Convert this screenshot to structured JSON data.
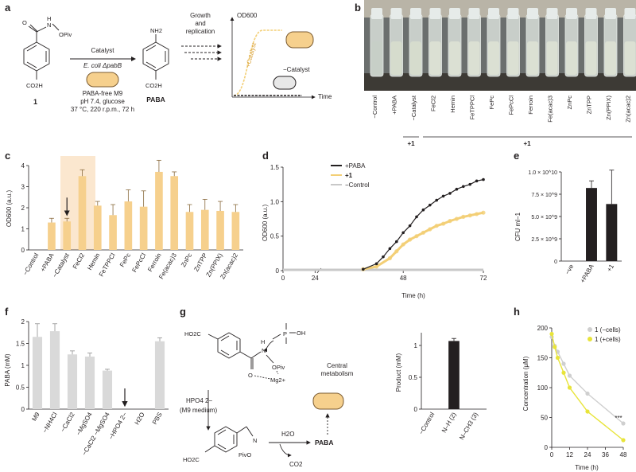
{
  "panel_labels": {
    "a": "a",
    "b": "b",
    "c": "c",
    "d": "d",
    "e": "e",
    "f": "f",
    "g": "g",
    "h": "h"
  },
  "panel_a": {
    "reactant_substituent": "OPiv",
    "reactant_nh": "N",
    "reactant_h": "H",
    "reactant_o": "O",
    "reactant_acid": "CO2H",
    "compound_number": "1",
    "arrow_label": "Catalyst",
    "organism": "E. coli ΔpabB",
    "conditions": [
      "PABA-free M9",
      "pH 7.4, glucose",
      "37 °C, 220 r.p.m., 72 h"
    ],
    "product_amine": "NH2",
    "product_acid": "CO2H",
    "product_name": "PABA",
    "growth_label": [
      "Growth",
      "and",
      "replication"
    ],
    "y_axis": "OD600",
    "x_axis": "Time",
    "plus_catalyst": "+Catalyst",
    "minus_catalyst": "−Catalyst"
  },
  "panel_b": {
    "tube_labels": [
      "−Control",
      "+PABA",
      "−Catalyst",
      "FeCl2",
      "Hemin",
      "FeTPPCl",
      "FePc",
      "FePcCl",
      "Ferroin",
      "Fe(acac)3",
      "ZnPc",
      "ZnTPP",
      "Zn(PPIX)",
      "Zn(acac)2"
    ],
    "group_label_single": "+1",
    "group_label_range": "+1"
  },
  "panel_c": {
    "chart_data": {
      "type": "bar",
      "ylabel": "OD600 (a.u.)",
      "ylim": [
        0,
        4
      ],
      "yticks": [
        0,
        1,
        2,
        3,
        4
      ],
      "categories": [
        "−Control",
        "+PABA",
        "−Catalyst",
        "FeCl2",
        "Hemin",
        "FeTPPCl",
        "FePc",
        "FePcCl",
        "Ferroin",
        "Fe(acac)3",
        "ZnPc",
        "ZnTPP",
        "Zn(PPIX)",
        "Zn(acac)2"
      ],
      "values": [
        0.0,
        1.3,
        1.35,
        3.5,
        2.1,
        1.65,
        2.3,
        2.05,
        3.7,
        3.5,
        1.8,
        1.9,
        1.85,
        1.8
      ],
      "errors": [
        0.0,
        0.2,
        0.15,
        0.3,
        0.2,
        0.5,
        0.55,
        0.75,
        0.55,
        0.2,
        0.35,
        0.5,
        0.45,
        0.35
      ],
      "highlight_categories": [
        "+PABA",
        "−Catalyst"
      ],
      "arrow_at": "−Catalyst",
      "bar_color": "#f6d08d"
    }
  },
  "panel_d": {
    "chart_data": {
      "type": "scatter",
      "xlabel": "Time (h)",
      "ylabel": "OD600 (a.u.)",
      "xlim": [
        0,
        72
      ],
      "ylim": [
        0,
        1.5
      ],
      "xticks": [
        0,
        24,
        48,
        72
      ],
      "yticks": [
        0,
        0.5,
        1.0,
        1.5
      ],
      "axis_break_after": 24,
      "legend_position": "top-left",
      "series": [
        {
          "name": "+PABA",
          "color": "#231f20",
          "x": [
            36,
            40,
            42,
            44,
            46,
            48,
            50,
            52,
            54,
            56,
            58,
            60,
            62,
            64,
            66,
            68,
            70,
            72
          ],
          "y": [
            0.02,
            0.1,
            0.2,
            0.32,
            0.42,
            0.55,
            0.65,
            0.78,
            0.88,
            0.95,
            1.02,
            1.08,
            1.12,
            1.18,
            1.22,
            1.25,
            1.3,
            1.32
          ]
        },
        {
          "name": "+1",
          "color": "#f3cf76",
          "x": [
            36,
            40,
            44,
            46,
            48,
            50,
            52,
            54,
            56,
            58,
            60,
            62,
            64,
            66,
            68,
            70,
            72
          ],
          "y": [
            0.02,
            0.06,
            0.18,
            0.28,
            0.38,
            0.45,
            0.5,
            0.55,
            0.6,
            0.65,
            0.68,
            0.72,
            0.75,
            0.78,
            0.8,
            0.82,
            0.84
          ]
        },
        {
          "name": "−Control",
          "color": "#c8c8c8",
          "x": [
            0,
            8,
            16,
            24,
            36,
            48,
            60,
            72
          ],
          "y": [
            0.0,
            0.0,
            0.0,
            0.0,
            0.0,
            0.0,
            0.0,
            0.0
          ]
        }
      ]
    }
  },
  "panel_e": {
    "chart_data": {
      "type": "bar",
      "ylabel": "CFU ml−1",
      "ylim": [
        0,
        10000000000
      ],
      "yticks": [
        "0",
        "2.5 × 10^9",
        "5.0 × 10^9",
        "7.5 × 10^9",
        "1.0 × 10^10"
      ],
      "categories": [
        "−ve",
        "+PABA",
        "+1"
      ],
      "values": [
        0,
        8200000000,
        6400000000
      ],
      "errors": [
        0,
        800000000,
        3800000000
      ]
    }
  },
  "panel_f": {
    "chart_data": {
      "type": "bar",
      "ylabel": "PABA (mM)",
      "ylim": [
        0,
        2
      ],
      "yticks": [
        0,
        0.5,
        1.0,
        1.5,
        2.0
      ],
      "categories": [
        "M9",
        "−NH4Cl",
        "−CaCl2",
        "−MgSO4",
        "−CaCl2 −MgSO4",
        "−HPO4 2−",
        "H2O",
        "PBS"
      ],
      "values": [
        1.65,
        1.78,
        1.25,
        1.2,
        0.88,
        0.0,
        0.0,
        1.55
      ],
      "errors": [
        0.3,
        0.17,
        0.08,
        0.08,
        0.03,
        0.0,
        0.0,
        0.08
      ],
      "arrow_at": "−HPO4 2−",
      "bar_color": "#d9d9d9"
    }
  },
  "panel_g": {
    "labels": {
      "ho2c_top": "HO2C",
      "n": "N",
      "h": "H",
      "opiv": "OPiv",
      "o": "O",
      "mg": "Mg2+",
      "phosphate_p": "P",
      "phosphate_oh": "OH",
      "hpo4": "HPO4 2−",
      "m9": "(M9 medium)",
      "central": [
        "Central",
        "metabolism"
      ],
      "paba": "PABA",
      "h2o": "H2O",
      "co2": "CO2",
      "ho2c_bottom": "HO2C",
      "pivo": "PivO"
    },
    "chart_data": {
      "type": "bar",
      "ylabel": "Product (mM)",
      "ylim": [
        0,
        1.2
      ],
      "yticks": [
        0,
        0.5,
        1.0
      ],
      "categories": [
        "−Control",
        "N–H (2)",
        "N–CH3 (3)"
      ],
      "values": [
        0,
        1.07,
        0
      ],
      "errors": [
        0,
        0.04,
        0
      ]
    }
  },
  "panel_h": {
    "chart_data": {
      "type": "line",
      "xlabel": "Time (h)",
      "ylabel": "Concentration (μM)",
      "xlim": [
        0,
        48
      ],
      "ylim": [
        0,
        200
      ],
      "xticks": [
        0,
        12,
        24,
        36,
        48
      ],
      "yticks": [
        0,
        50,
        100,
        150,
        200
      ],
      "significance": "***",
      "series": [
        {
          "name": "1 (−cells)",
          "color": "#cfcfcf",
          "x": [
            0,
            2,
            4,
            8,
            12,
            24,
            48
          ],
          "y": [
            185,
            170,
            160,
            140,
            120,
            90,
            40
          ]
        },
        {
          "name": "1 (+cells)",
          "color": "#e8e43a",
          "x": [
            0,
            2,
            4,
            8,
            12,
            24,
            48
          ],
          "y": [
            190,
            168,
            150,
            125,
            100,
            60,
            12
          ]
        }
      ]
    }
  }
}
